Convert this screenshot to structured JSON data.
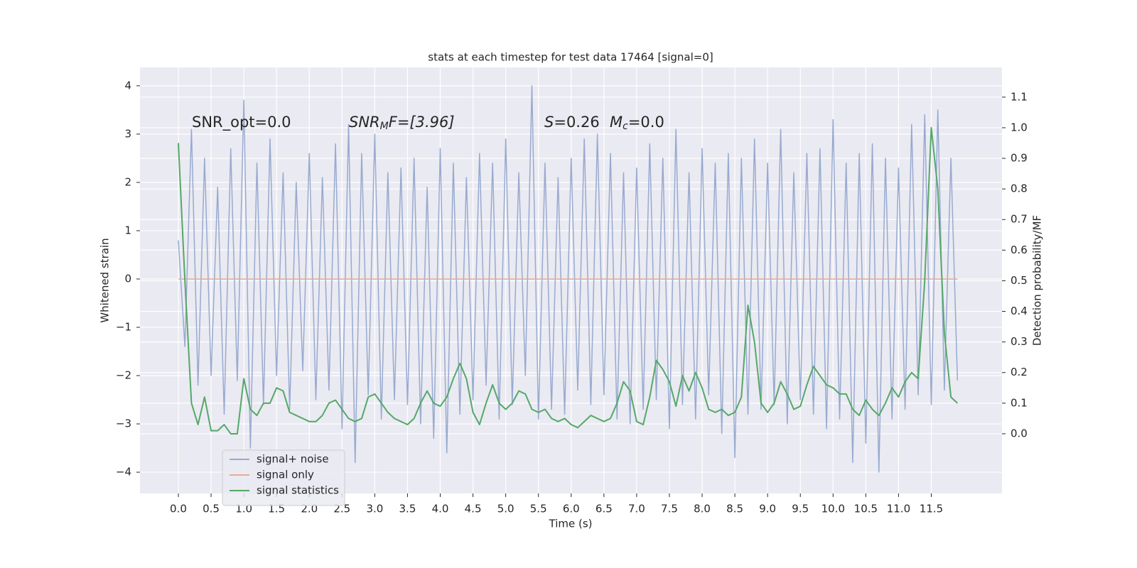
{
  "chart_data": {
    "type": "line",
    "title": "stats at each timestep for test data 17464 [signal=0]",
    "x_label": "Time (s)",
    "y_label": "Whitened strain",
    "y2_label": "Detection probability/MF",
    "grid": true,
    "legend": "lower left",
    "xlim": [
      -0.586,
      12.58
    ],
    "ylim": [
      -4.44,
      4.38
    ],
    "y2lim": [
      -0.195,
      1.197
    ],
    "xticks": [
      {
        "value": 0,
        "label": "0.0"
      },
      0.5,
      {
        "value": 1,
        "label": "1.0"
      },
      1.5,
      {
        "value": 2,
        "label": "2.0"
      },
      2.5,
      {
        "value": 3,
        "label": "3.0"
      },
      3.5,
      {
        "value": 4,
        "label": "4.0"
      },
      4.5,
      {
        "value": 5,
        "label": "5.0"
      },
      5.5,
      {
        "value": 6,
        "label": "6.0"
      },
      6.5,
      {
        "value": 7,
        "label": "7.0"
      },
      7.5,
      {
        "value": 8,
        "label": "8.0"
      },
      8.5,
      {
        "value": 9,
        "label": "9.0"
      },
      9.5,
      {
        "value": 10,
        "label": "10.0"
      },
      10.5,
      {
        "value": 11,
        "label": "11.0"
      },
      11.5
    ],
    "yticks": [
      {
        "value": -4,
        "label": "−4"
      },
      {
        "value": -3,
        "label": "−3"
      },
      {
        "value": -2,
        "label": "−2"
      },
      {
        "value": -1,
        "label": "−1"
      },
      0,
      1,
      2,
      3,
      4
    ],
    "y2ticks": [
      {
        "value": 0,
        "label": "0.0"
      },
      0.1,
      0.2,
      0.3,
      0.4,
      0.5,
      0.6,
      0.7,
      0.8,
      0.9,
      {
        "value": 1,
        "label": "1.0"
      },
      1.1
    ],
    "annotations": [
      {
        "text": "SNR_opt=0.0"
      },
      {
        "main": "SNR",
        "sub": "M",
        "tail": "F=[3.96]"
      },
      {
        "main": "S",
        "tail": "=0.26"
      },
      {
        "main": "M",
        "sub": "c",
        "tail": "=0.0"
      }
    ],
    "x": [
      0.0,
      0.1,
      0.2,
      0.3,
      0.4,
      0.5,
      0.6,
      0.7,
      0.8,
      0.9,
      1.0,
      1.1,
      1.2,
      1.3,
      1.4,
      1.5,
      1.6,
      1.7,
      1.8,
      1.9,
      2.0,
      2.1,
      2.2,
      2.3,
      2.4,
      2.5,
      2.6,
      2.7,
      2.8,
      2.9,
      3.0,
      3.1,
      3.2,
      3.3,
      3.4,
      3.5,
      3.6,
      3.7,
      3.8,
      3.9,
      4.0,
      4.1,
      4.2,
      4.3,
      4.4,
      4.5,
      4.6,
      4.7,
      4.8,
      4.9,
      5.0,
      5.1,
      5.2,
      5.3,
      5.4,
      5.5,
      5.6,
      5.7,
      5.8,
      5.9,
      6.0,
      6.1,
      6.2,
      6.3,
      6.4,
      6.5,
      6.6,
      6.7,
      6.8,
      6.9,
      7.0,
      7.1,
      7.2,
      7.3,
      7.4,
      7.5,
      7.6,
      7.7,
      7.8,
      7.9,
      8.0,
      8.1,
      8.2,
      8.3,
      8.4,
      8.5,
      8.6,
      8.7,
      8.8,
      8.9,
      9.0,
      9.1,
      9.2,
      9.3,
      9.4,
      9.5,
      9.6,
      9.7,
      9.8,
      9.9,
      10.0,
      10.1,
      10.2,
      10.3,
      10.4,
      10.5,
      10.6,
      10.7,
      10.8,
      10.9,
      11.0,
      11.1,
      11.2,
      11.3,
      11.4,
      11.5,
      11.6,
      11.7,
      11.8,
      11.9
    ],
    "series": [
      {
        "name": "signal+ noise",
        "color": "#98aad0",
        "values": [
          0.8,
          -1.4,
          3.1,
          -2.2,
          2.5,
          -2.0,
          1.9,
          -2.8,
          2.7,
          -2.1,
          3.7,
          -3.5,
          2.4,
          -2.6,
          2.9,
          -2.0,
          2.2,
          -2.7,
          2.0,
          -1.9,
          2.6,
          -2.5,
          2.1,
          -2.3,
          2.8,
          -3.1,
          3.2,
          -3.8,
          2.6,
          -2.4,
          3.0,
          -2.9,
          2.2,
          -2.5,
          2.3,
          -2.6,
          2.5,
          -3.0,
          1.9,
          -3.3,
          2.7,
          -3.6,
          2.4,
          -2.8,
          2.1,
          -2.5,
          2.6,
          -2.2,
          2.4,
          -2.9,
          2.9,
          -2.6,
          2.2,
          -2.0,
          4.0,
          -2.9,
          2.4,
          -2.7,
          2.1,
          -2.8,
          2.5,
          -2.3,
          2.9,
          -2.6,
          3.0,
          -2.4,
          2.6,
          -2.9,
          2.2,
          -3.0,
          2.3,
          -2.7,
          2.8,
          -2.5,
          2.5,
          -3.1,
          3.1,
          -2.6,
          2.2,
          -2.9,
          2.7,
          -2.4,
          2.4,
          -3.2,
          2.6,
          -3.7,
          2.5,
          -2.8,
          2.9,
          -2.7,
          2.4,
          -2.6,
          3.1,
          -3.0,
          2.2,
          -2.5,
          2.6,
          -2.8,
          2.7,
          -3.1,
          3.3,
          -2.9,
          2.4,
          -3.8,
          2.6,
          -3.4,
          2.8,
          -4.0,
          2.5,
          -2.9,
          2.3,
          -2.7,
          3.2,
          -2.4,
          3.4,
          -2.6,
          3.5,
          -2.3,
          2.5,
          -2.1
        ]
      },
      {
        "name": "signal only",
        "color": "#e3ad97",
        "x": [
          0.0,
          11.9
        ],
        "values": [
          0,
          0
        ]
      },
      {
        "name": "signal statistics",
        "color": "#55a868",
        "axis": "y2",
        "values": [
          0.95,
          0.5,
          0.1,
          0.03,
          0.12,
          0.01,
          0.01,
          0.03,
          0.0,
          0.0,
          0.18,
          0.08,
          0.06,
          0.1,
          0.1,
          0.15,
          0.14,
          0.07,
          0.06,
          0.05,
          0.04,
          0.04,
          0.06,
          0.1,
          0.11,
          0.08,
          0.05,
          0.04,
          0.05,
          0.12,
          0.13,
          0.1,
          0.07,
          0.05,
          0.04,
          0.03,
          0.05,
          0.1,
          0.14,
          0.1,
          0.09,
          0.12,
          0.18,
          0.23,
          0.18,
          0.07,
          0.03,
          0.1,
          0.16,
          0.1,
          0.08,
          0.1,
          0.14,
          0.13,
          0.08,
          0.07,
          0.08,
          0.05,
          0.04,
          0.05,
          0.03,
          0.02,
          0.04,
          0.06,
          0.05,
          0.04,
          0.05,
          0.1,
          0.17,
          0.14,
          0.04,
          0.03,
          0.12,
          0.24,
          0.21,
          0.17,
          0.09,
          0.19,
          0.14,
          0.2,
          0.15,
          0.08,
          0.07,
          0.08,
          0.06,
          0.07,
          0.12,
          0.42,
          0.3,
          0.1,
          0.07,
          0.1,
          0.17,
          0.13,
          0.08,
          0.09,
          0.16,
          0.22,
          0.19,
          0.16,
          0.15,
          0.13,
          0.13,
          0.08,
          0.06,
          0.11,
          0.08,
          0.06,
          0.1,
          0.15,
          0.12,
          0.17,
          0.2,
          0.18,
          0.5,
          1.0,
          0.8,
          0.33,
          0.12,
          0.1
        ]
      }
    ]
  }
}
